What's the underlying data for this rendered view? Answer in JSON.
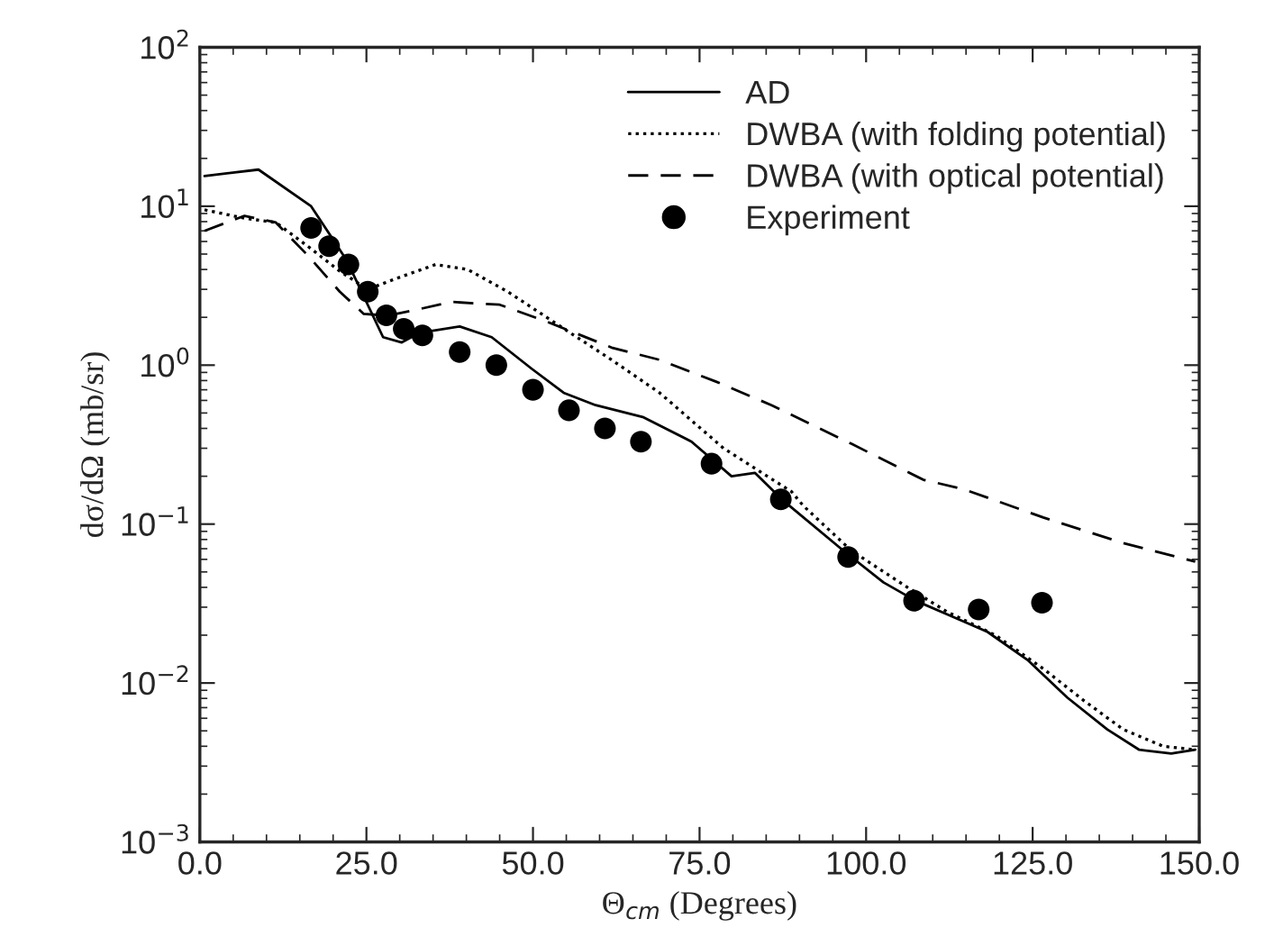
{
  "chart_data": {
    "type": "line",
    "xlabel": "Θ$_{cm}$ (Degrees)",
    "ylabel": "dσ/dΩ (mb/sr)",
    "log": "y",
    "grid": false,
    "legend": "top right",
    "xlim": [
      0,
      150
    ],
    "xticks": [
      {
        "value": 0,
        "label": "0.0"
      },
      {
        "value": 25,
        "label": "25.0"
      },
      {
        "value": 50,
        "label": "50.0"
      },
      {
        "value": 75,
        "label": "75.0"
      },
      {
        "value": 100,
        "label": "100.0"
      },
      {
        "value": 125,
        "label": "125.0"
      },
      {
        "value": 150,
        "label": "150.0"
      }
    ],
    "ylim": [
      0.001,
      100
    ],
    "yticks": [
      {
        "value": 0.001,
        "label": "10$^{−3}$"
      },
      {
        "value": 0.01,
        "label": "10$^{−2}$"
      },
      {
        "value": 0.1,
        "label": "10$^{−1}$"
      },
      {
        "value": 1,
        "label": "10$^{0}$"
      },
      {
        "value": 10,
        "label": "10$^{1}$"
      },
      {
        "value": 100,
        "label": "10$^{2}$"
      }
    ],
    "series": [
      {
        "name": "AD",
        "line_style": "solid",
        "marker": "none",
        "color": "#000000",
        "x": [
          0.7,
          8.8,
          16.7,
          22,
          27.5,
          30.3,
          33,
          39,
          43.8,
          49.8,
          54.6,
          59.4,
          66.6,
          73.8,
          79.8,
          83.3,
          87.6,
          96.6,
          102.6,
          107.4,
          112.2,
          118.2,
          124.2,
          130.2,
          136.2,
          141,
          145.8,
          149.4
        ],
        "values": [
          15.5,
          17,
          10,
          4.6,
          1.5,
          1.39,
          1.6,
          1.75,
          1.5,
          0.95,
          0.67,
          0.56,
          0.47,
          0.33,
          0.2,
          0.21,
          0.14,
          0.068,
          0.043,
          0.033,
          0.027,
          0.021,
          0.014,
          0.0081,
          0.0051,
          0.0038,
          0.0036,
          0.0038
        ]
      },
      {
        "name": "DWBA (with folding potential)",
        "line_style": "dotted",
        "marker": "none",
        "color": "#000000",
        "x": [
          0.7,
          6.7,
          11.4,
          16.2,
          21,
          25.2,
          29.4,
          35.4,
          40.2,
          46.2,
          54.6,
          61.8,
          69,
          78.6,
          88.8,
          90.6,
          97.8,
          106.2,
          112.2,
          119.4,
          126.6,
          132.6,
          138.6,
          144.6,
          149.4
        ],
        "values": [
          9.5,
          8.4,
          7.9,
          5.6,
          3.9,
          3.0,
          3.5,
          4.3,
          4.0,
          2.9,
          1.7,
          1.08,
          0.67,
          0.3,
          0.16,
          0.13,
          0.068,
          0.04,
          0.028,
          0.02,
          0.0123,
          0.0078,
          0.0051,
          0.004,
          0.0038
        ]
      },
      {
        "name": "DWBA (with optical potential)",
        "line_style": "dashed",
        "marker": "none",
        "color": "#000000",
        "x": [
          0.7,
          6.7,
          11.4,
          16.2,
          21,
          24.6,
          28.2,
          31.8,
          37.8,
          45,
          52.2,
          61.8,
          69,
          77.4,
          85.8,
          97.8,
          108.6,
          114.6,
          126.6,
          138.6,
          149.4
        ],
        "values": [
          7.0,
          8.7,
          7.9,
          4.9,
          2.9,
          2.1,
          2.05,
          2.2,
          2.5,
          2.4,
          1.87,
          1.29,
          1.08,
          0.79,
          0.56,
          0.32,
          0.19,
          0.166,
          0.11,
          0.076,
          0.058
        ]
      },
      {
        "name": "Experiment",
        "type": "scatter",
        "marker": "circle",
        "color": "#000000",
        "x": [
          16.7,
          19.4,
          22.3,
          25.2,
          28,
          30.6,
          33.4,
          39,
          44.5,
          50,
          55.4,
          60.8,
          66.2,
          76.8,
          87.2,
          97.3,
          107.2,
          116.9,
          126.4
        ],
        "values": [
          7.3,
          5.6,
          4.3,
          2.9,
          2.06,
          1.69,
          1.54,
          1.21,
          1.0,
          0.7,
          0.52,
          0.4,
          0.33,
          0.24,
          0.143,
          0.062,
          0.033,
          0.029,
          0.032
        ]
      }
    ]
  }
}
